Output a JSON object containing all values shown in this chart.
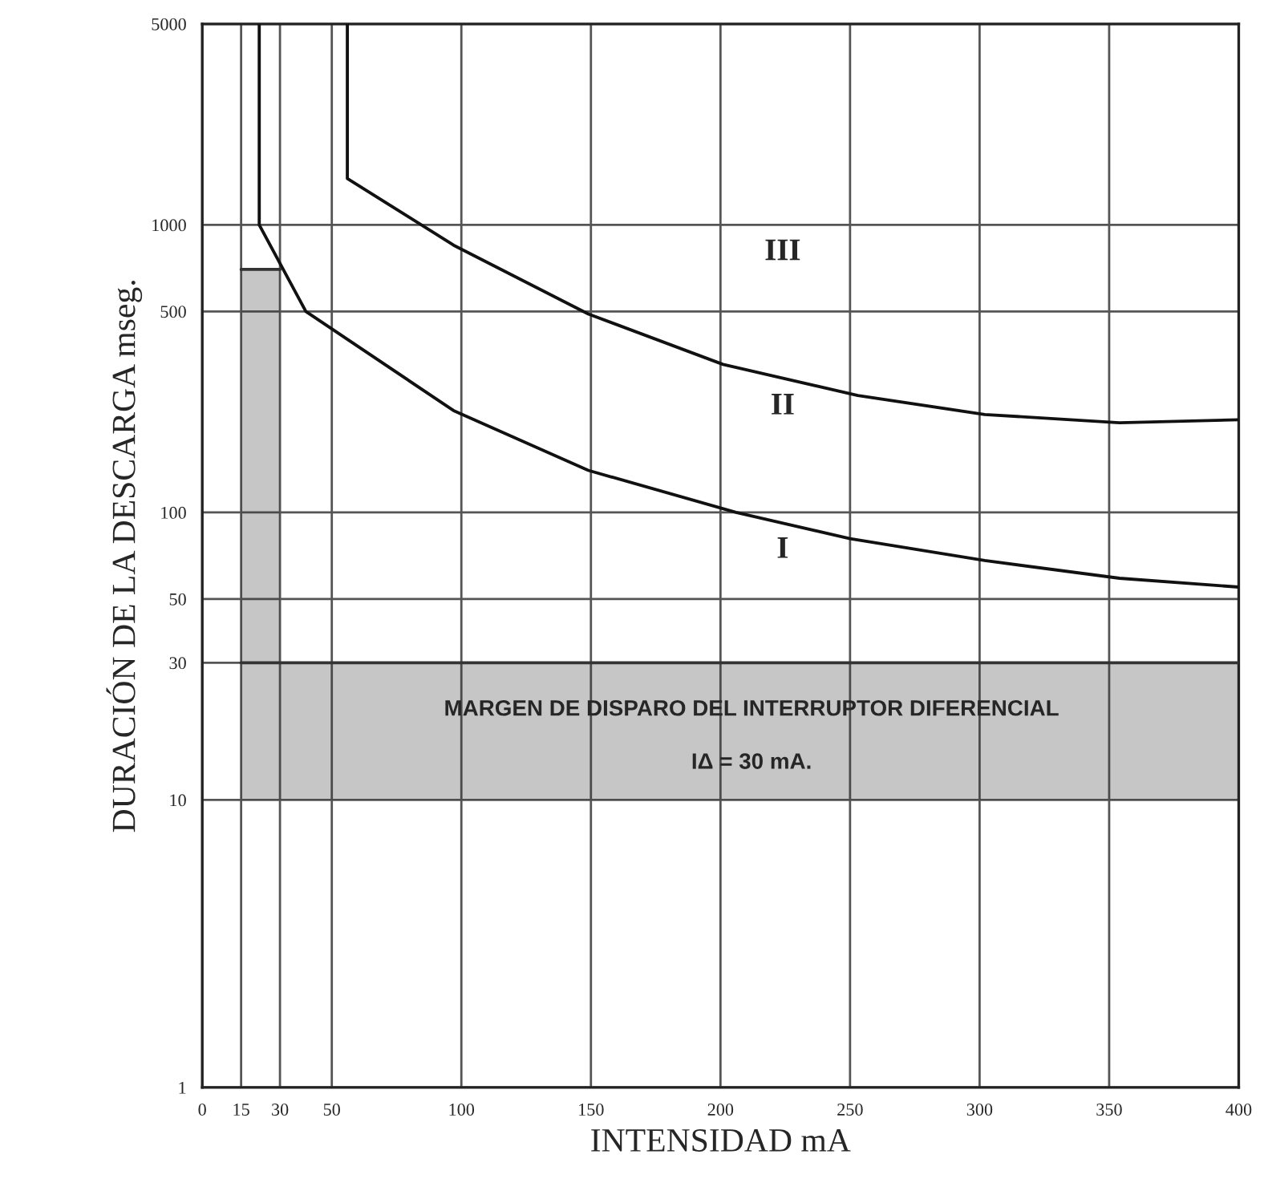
{
  "chart_data": {
    "type": "line",
    "xlabel": "INTENSIDAD mA",
    "ylabel": "DURACIÓN DE LA DESCARGA mseg.",
    "xlim": [
      0,
      400
    ],
    "ylim": [
      1,
      5000
    ],
    "log": "y",
    "xticks": [
      0,
      15,
      30,
      50,
      100,
      150,
      200,
      250,
      300,
      350,
      400
    ],
    "yticks": [
      1,
      10,
      30,
      50,
      100,
      500,
      1000,
      5000
    ],
    "grid": true,
    "legend": false,
    "marker": "none",
    "line_style": "solid",
    "series": [
      {
        "color": "#333333",
        "x": [
          15,
          200,
          400
        ],
        "values": [
          30,
          30,
          30
        ],
        "lower": [
          10,
          10,
          10
        ],
        "upper": [
          30,
          30,
          30
        ]
      },
      {
        "color": "#333333",
        "x": [
          15,
          22,
          30
        ],
        "values": [
          700,
          700,
          700
        ],
        "lower": [
          30,
          30,
          30
        ],
        "upper": [
          700,
          700,
          700
        ]
      },
      {
        "color": "#111111",
        "x": [
          22,
          22,
          40,
          97,
          149,
          206,
          250,
          302,
          354,
          400
        ],
        "values": [
          5000,
          1000,
          500,
          226,
          140,
          100,
          81,
          68,
          59,
          55
        ]
      },
      {
        "color": "#111111",
        "x": [
          56,
          56,
          97,
          149,
          201,
          253,
          302,
          354,
          400
        ],
        "values": [
          5000,
          1450,
          850,
          490,
          327,
          255,
          219,
          205,
          210
        ]
      }
    ],
    "annotations": [
      "III",
      "II",
      "I",
      "MARGEN DE DISPARO DEL INTERRUPTOR DIFERENCIAL",
      "IΔ = 30 mA."
    ]
  }
}
